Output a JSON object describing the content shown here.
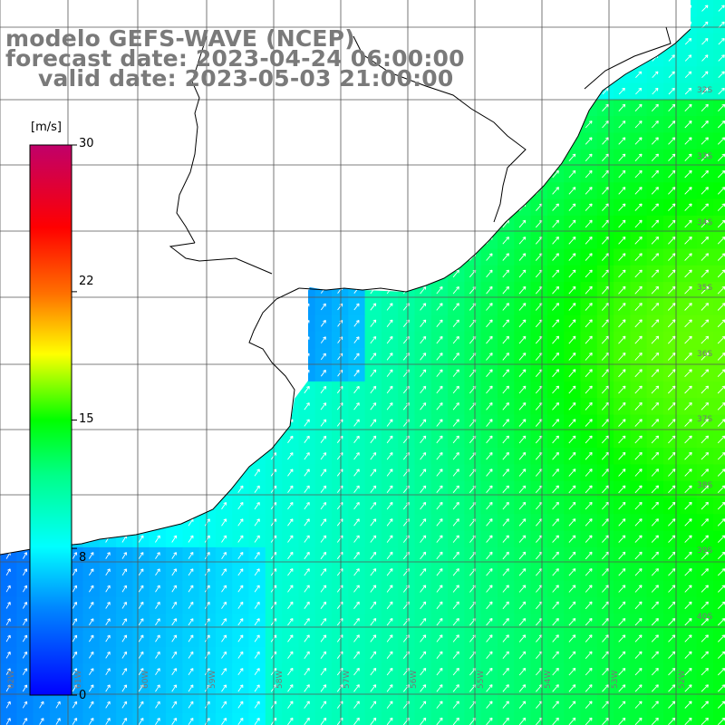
{
  "title": {
    "model_line": "modelo GEFS-WAVE (NCEP)",
    "forecast_line": "forecast date: 2023-04-24 06:00:00",
    "valid_line": "valid date: 2023-05-03 21:00:00"
  },
  "colorbar": {
    "unit": "[m/s]",
    "ticks": [
      "30",
      "22",
      "15",
      "8",
      "0"
    ],
    "tick_values": [
      30,
      22,
      15,
      8,
      0
    ],
    "range": [
      0,
      30
    ],
    "colors": [
      "#0000ff",
      "#00aaff",
      "#00ffff",
      "#00ff00",
      "#ffff00",
      "#ff8000",
      "#ff0000",
      "#c0006a"
    ]
  },
  "map": {
    "variable": "wind speed and direction",
    "land_color": "#ffffff",
    "coastline_color": "#000000",
    "grid_color": "#666666",
    "arrow_color": "#ffffff",
    "lat_labels": [
      "32S",
      "33S",
      "34S",
      "35S",
      "36S",
      "37S",
      "38S",
      "39S",
      "40S"
    ],
    "lon_labels": [
      "62W",
      "61W",
      "60W",
      "59W",
      "58W",
      "57W",
      "56W",
      "55W",
      "54W",
      "53W",
      "52W"
    ]
  }
}
